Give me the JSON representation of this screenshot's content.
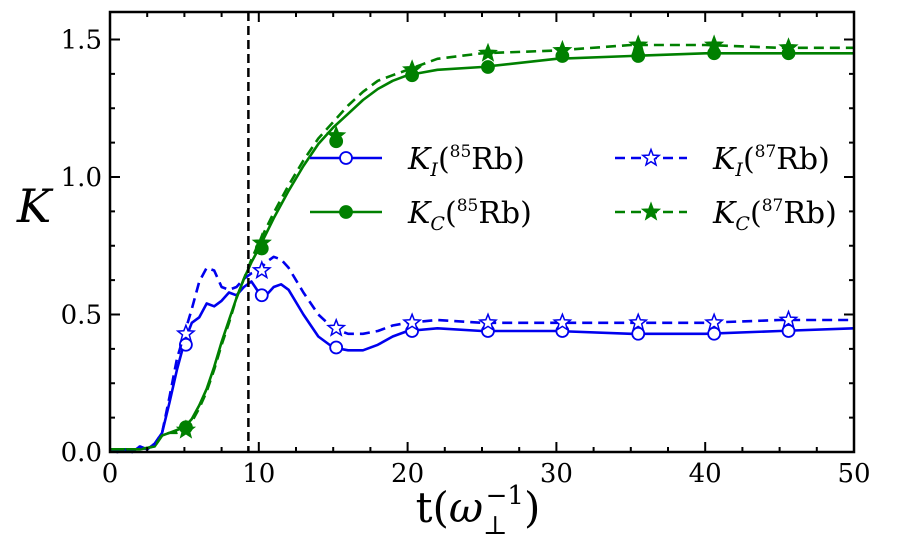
{
  "chart_data": {
    "type": "line",
    "xlabel": "t(ω⊥⁻¹)",
    "xlabel_parts": {
      "main": "t(",
      "omega": "ω",
      "sub": "⊥",
      "sup": "−1",
      "close": ")"
    },
    "ylabel": "K",
    "xlim": [
      0,
      50
    ],
    "ylim": [
      0,
      1.6
    ],
    "xticks": [
      0,
      10,
      20,
      30,
      40,
      50
    ],
    "xtick_labels": [
      "0",
      "10",
      "20",
      "30",
      "40",
      "50"
    ],
    "yticks": [
      0.0,
      0.5,
      1.0,
      1.5
    ],
    "ytick_labels": [
      "0.0",
      "0.5",
      "1.0",
      "1.5"
    ],
    "vline": {
      "x": 9.3,
      "style": "dashed",
      "color": "#000000"
    },
    "legend_position": "upper-right",
    "legend_columns": 2,
    "series": [
      {
        "name": "K_I(85Rb)",
        "legend": {
          "K": "K",
          "sub": "I",
          "open": "(",
          "iso": "85",
          "el": "Rb",
          "close": ")"
        },
        "color": "#0000ee",
        "linestyle": "solid",
        "marker": "circle-open",
        "x": [
          0,
          0.5,
          1,
          1.5,
          2,
          2.5,
          3,
          3.5,
          4,
          4.5,
          5,
          5.5,
          6,
          6.5,
          7,
          7.5,
          8,
          8.5,
          9,
          9.5,
          10,
          10.5,
          11,
          11.5,
          12,
          13,
          14,
          15,
          16,
          17,
          18,
          19,
          20,
          22,
          25,
          30,
          35,
          40,
          45,
          50
        ],
        "y": [
          0.01,
          0.0,
          0.01,
          0.0,
          0.02,
          0.01,
          0.03,
          0.07,
          0.18,
          0.3,
          0.4,
          0.47,
          0.49,
          0.54,
          0.53,
          0.55,
          0.58,
          0.57,
          0.6,
          0.62,
          0.58,
          0.57,
          0.6,
          0.61,
          0.59,
          0.5,
          0.42,
          0.38,
          0.37,
          0.37,
          0.39,
          0.42,
          0.44,
          0.45,
          0.44,
          0.44,
          0.43,
          0.43,
          0.44,
          0.45
        ],
        "marker_x": [
          5.1,
          10.2,
          15.2,
          20.3,
          25.4,
          30.4,
          35.5,
          40.6,
          45.6
        ],
        "marker_y": [
          0.39,
          0.57,
          0.38,
          0.44,
          0.44,
          0.44,
          0.43,
          0.43,
          0.44
        ]
      },
      {
        "name": "K_C(85Rb)",
        "legend": {
          "K": "K",
          "sub": "C",
          "open": "(",
          "iso": "85",
          "el": "Rb",
          "close": ")"
        },
        "color": "#008000",
        "linestyle": "solid",
        "marker": "circle-filled",
        "x": [
          0,
          1,
          2,
          3,
          3.5,
          4,
          4.5,
          5,
          5.5,
          6,
          6.5,
          7,
          7.5,
          8,
          8.5,
          9,
          9.5,
          10,
          11,
          12,
          13,
          14,
          15,
          16,
          17,
          18,
          19,
          20,
          21,
          22,
          25,
          30,
          35,
          40,
          45,
          50
        ],
        "y": [
          0.01,
          0.01,
          0.01,
          0.02,
          0.06,
          0.07,
          0.08,
          0.09,
          0.12,
          0.17,
          0.23,
          0.31,
          0.4,
          0.48,
          0.56,
          0.63,
          0.69,
          0.74,
          0.85,
          0.95,
          1.04,
          1.12,
          1.18,
          1.23,
          1.28,
          1.32,
          1.35,
          1.37,
          1.38,
          1.39,
          1.4,
          1.43,
          1.44,
          1.45,
          1.45,
          1.45
        ],
        "marker_x": [
          5.1,
          10.2,
          15.2,
          20.3,
          25.4,
          30.4,
          35.5,
          40.6,
          45.6
        ],
        "marker_y": [
          0.09,
          0.74,
          1.13,
          1.37,
          1.4,
          1.44,
          1.44,
          1.45,
          1.45
        ]
      },
      {
        "name": "K_I(87Rb)",
        "legend": {
          "K": "K",
          "sub": "I",
          "open": "(",
          "iso": "87",
          "el": "Rb",
          "close": ")"
        },
        "color": "#0000ee",
        "linestyle": "dashed",
        "marker": "star-open",
        "x": [
          0,
          0.5,
          1,
          1.5,
          2,
          2.5,
          3,
          3.5,
          4,
          4.5,
          5,
          5.5,
          6,
          6.5,
          7,
          7.5,
          8,
          8.5,
          9,
          9.5,
          10,
          10.5,
          11,
          11.5,
          12,
          13,
          14,
          15,
          16,
          17,
          18,
          19,
          20,
          22,
          25,
          30,
          35,
          40,
          45,
          50
        ],
        "y": [
          0.01,
          0.0,
          0.01,
          0.0,
          0.02,
          0.01,
          0.03,
          0.07,
          0.2,
          0.34,
          0.43,
          0.52,
          0.62,
          0.67,
          0.66,
          0.6,
          0.59,
          0.6,
          0.63,
          0.65,
          0.66,
          0.69,
          0.71,
          0.7,
          0.67,
          0.58,
          0.5,
          0.45,
          0.43,
          0.43,
          0.44,
          0.46,
          0.47,
          0.48,
          0.47,
          0.47,
          0.47,
          0.47,
          0.48,
          0.48
        ],
        "marker_x": [
          5.1,
          10.2,
          15.2,
          20.3,
          25.4,
          30.4,
          35.5,
          40.6,
          45.6
        ],
        "marker_y": [
          0.43,
          0.66,
          0.45,
          0.47,
          0.47,
          0.47,
          0.47,
          0.47,
          0.48
        ]
      },
      {
        "name": "K_C(87Rb)",
        "legend": {
          "K": "K",
          "sub": "C",
          "open": "(",
          "iso": "87",
          "el": "Rb",
          "close": ")"
        },
        "color": "#008000",
        "linestyle": "dashed",
        "marker": "star-filled",
        "x": [
          0,
          1,
          2,
          3,
          3.5,
          4,
          4.5,
          5,
          5.5,
          6,
          6.5,
          7,
          7.5,
          8,
          8.5,
          9,
          9.5,
          10,
          11,
          12,
          13,
          14,
          15,
          16,
          17,
          18,
          19,
          20,
          21,
          22,
          25,
          30,
          35,
          40,
          45,
          50
        ],
        "y": [
          0.01,
          0.01,
          0.01,
          0.02,
          0.06,
          0.07,
          0.07,
          0.08,
          0.11,
          0.16,
          0.22,
          0.3,
          0.39,
          0.47,
          0.56,
          0.63,
          0.7,
          0.76,
          0.87,
          0.97,
          1.06,
          1.14,
          1.2,
          1.26,
          1.31,
          1.35,
          1.37,
          1.39,
          1.41,
          1.43,
          1.45,
          1.46,
          1.48,
          1.48,
          1.47,
          1.47
        ],
        "marker_x": [
          5.1,
          10.2,
          15.2,
          20.3,
          25.4,
          30.4,
          35.5,
          40.6,
          45.6
        ],
        "marker_y": [
          0.08,
          0.76,
          1.15,
          1.39,
          1.45,
          1.46,
          1.48,
          1.48,
          1.47
        ]
      }
    ]
  }
}
